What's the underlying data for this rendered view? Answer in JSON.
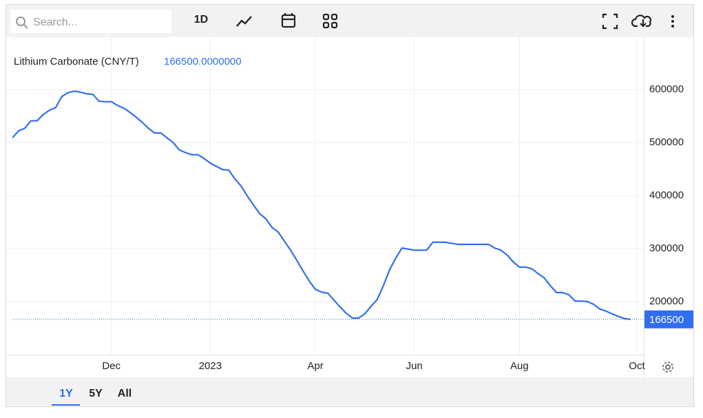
{
  "toolbar": {
    "search_placeholder": "Search...",
    "interval": "1D"
  },
  "range_buttons": [
    "1Y",
    "5Y",
    "All"
  ],
  "chart_data": {
    "type": "line",
    "legend_value": "166500.0000000",
    "categories": [
      null,
      null,
      null,
      null,
      null,
      null,
      null,
      null,
      null,
      null,
      null,
      null,
      null,
      null,
      null,
      null,
      "Dec",
      null,
      null,
      null,
      null,
      null,
      null,
      null,
      null,
      null,
      null,
      null,
      null,
      null,
      null,
      null,
      "2023",
      null,
      null,
      null,
      null,
      null,
      null,
      null,
      null,
      null,
      null,
      null,
      null,
      null,
      null,
      null,
      null,
      "Apr",
      null,
      null,
      null,
      null,
      null,
      null,
      null,
      null,
      null,
      null,
      null,
      null,
      null,
      null,
      null,
      "Jun",
      null,
      null,
      null,
      null,
      null,
      null,
      null,
      null,
      null,
      null,
      null,
      null,
      null,
      null,
      null,
      null,
      "Aug",
      null,
      null,
      null,
      null,
      null,
      null,
      null,
      null,
      null,
      null,
      null,
      null,
      null,
      null,
      null,
      null,
      null,
      null,
      "Oct"
    ],
    "series": [
      {
        "name": "Lithium Carbonate (CNY/T)",
        "color": "#2f6ef0",
        "values": [
          509000,
          522000,
          527000,
          541000,
          541000,
          553000,
          561000,
          566000,
          587000,
          594000,
          597000,
          595000,
          592000,
          591000,
          578000,
          577000,
          577000,
          570000,
          565000,
          557000,
          548000,
          538000,
          527000,
          518000,
          518000,
          509000,
          500000,
          486000,
          481000,
          477000,
          477000,
          470000,
          461000,
          455000,
          449000,
          448000,
          431000,
          418000,
          399000,
          382000,
          366000,
          356000,
          340000,
          331000,
          314000,
          297000,
          278000,
          258000,
          239000,
          223000,
          218000,
          216000,
          203000,
          190000,
          178000,
          169000,
          169000,
          177000,
          191000,
          204000,
          230000,
          260000,
          282000,
          301000,
          299000,
          297000,
          297000,
          297000,
          312000,
          312000,
          312000,
          310000,
          308000,
          308000,
          308000,
          308000,
          308000,
          308000,
          301000,
          297000,
          288000,
          275000,
          265000,
          265000,
          262000,
          253000,
          245000,
          230000,
          217000,
          217000,
          213000,
          201000,
          201000,
          200000,
          195000,
          186000,
          182000,
          177000,
          172000,
          168000,
          166500,
          null
        ]
      }
    ],
    "ylim": [
      100000,
      700000
    ],
    "yticks": [
      200000,
      300000,
      400000,
      500000,
      600000
    ],
    "grid": true
  }
}
